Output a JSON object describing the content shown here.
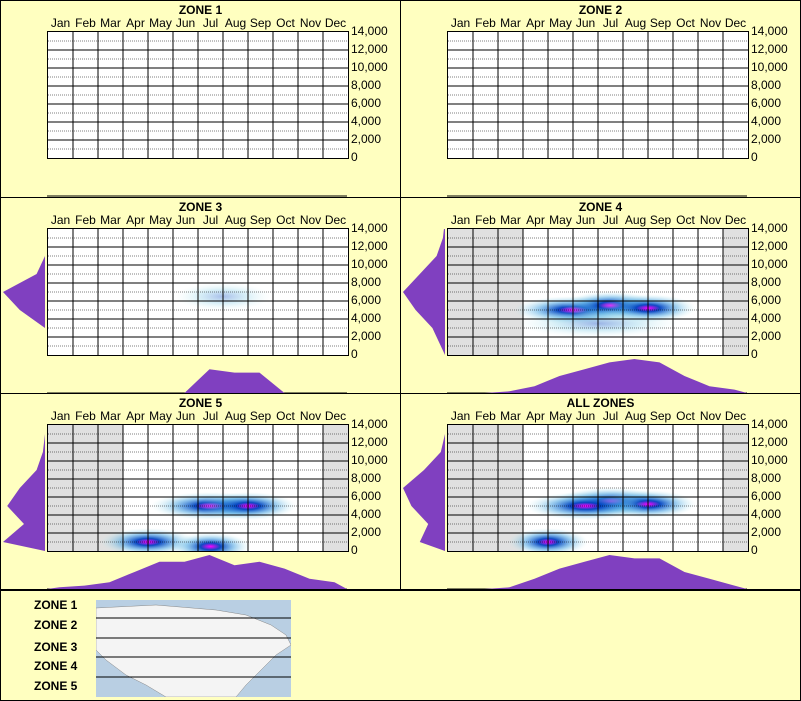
{
  "months": [
    "Jan",
    "Feb",
    "Mar",
    "Apr",
    "May",
    "Jun",
    "Jul",
    "Aug",
    "Sep",
    "Oct",
    "Nov",
    "Dec"
  ],
  "y_ticks": [
    "14,000",
    "12,000",
    "10,000",
    "8,000",
    "6,000",
    "4,000",
    "2,000",
    "0"
  ],
  "legend_labels": [
    "ZONE 1",
    "ZONE 2",
    "ZONE 3",
    "ZONE 4",
    "ZONE 5"
  ],
  "colors": {
    "background": "#ffffc0",
    "density": "#8040c0",
    "heat_low": "#c0f0f0",
    "heat_mid": "#0040c0",
    "heat_high": "#ff00ff",
    "shade": "#e0e0e0"
  },
  "chart_data": [
    {
      "type": "heatmap",
      "title": "ZONE 1",
      "ylim": [
        0,
        14000
      ],
      "x": [
        "Jan",
        "Feb",
        "Mar",
        "Apr",
        "May",
        "Jun",
        "Jul",
        "Aug",
        "Sep",
        "Oct",
        "Nov",
        "Dec"
      ],
      "shaded_months": [],
      "hotspots": []
    },
    {
      "type": "heatmap",
      "title": "ZONE 2",
      "ylim": [
        0,
        14000
      ],
      "x": [
        "Jan",
        "Feb",
        "Mar",
        "Apr",
        "May",
        "Jun",
        "Jul",
        "Aug",
        "Sep",
        "Oct",
        "Nov",
        "Dec"
      ],
      "shaded_months": [],
      "hotspots": []
    },
    {
      "type": "heatmap",
      "title": "ZONE 3",
      "ylim": [
        0,
        14000
      ],
      "x": [
        "Jan",
        "Feb",
        "Mar",
        "Apr",
        "May",
        "Jun",
        "Jul",
        "Aug",
        "Sep",
        "Oct",
        "Nov",
        "Dec"
      ],
      "shaded_months": [],
      "hotspots": [
        {
          "month": 7.5,
          "elev": 6500,
          "intensity": 0.35,
          "spread": 1.2
        }
      ],
      "month_density": [
        0,
        0,
        0,
        0,
        0,
        0,
        0.7,
        0.6,
        0.6,
        0,
        0,
        0
      ],
      "elev_density": [
        0,
        0,
        0.6,
        1,
        0.2,
        0,
        0,
        0
      ]
    },
    {
      "type": "heatmap",
      "title": "ZONE 4",
      "ylim": [
        0,
        14000
      ],
      "x": [
        "Jan",
        "Feb",
        "Mar",
        "Apr",
        "May",
        "Jun",
        "Jul",
        "Aug",
        "Sep",
        "Oct",
        "Nov",
        "Dec"
      ],
      "shaded_months": [
        "Jan",
        "Feb",
        "Mar",
        "Dec"
      ],
      "hotspots": [
        {
          "month": 5.5,
          "elev": 5000,
          "intensity": 0.7,
          "spread": 1.5
        },
        {
          "month": 7.0,
          "elev": 5500,
          "intensity": 1.0,
          "spread": 1.2
        },
        {
          "month": 8.5,
          "elev": 5200,
          "intensity": 0.9,
          "spread": 1.2
        },
        {
          "month": 6.5,
          "elev": 3500,
          "intensity": 0.4,
          "spread": 2.0
        }
      ],
      "month_density": [
        0,
        0,
        0.05,
        0.2,
        0.5,
        0.7,
        0.9,
        1.0,
        0.9,
        0.5,
        0.2,
        0.1
      ],
      "elev_density": [
        0.1,
        0.3,
        0.7,
        1.0,
        0.6,
        0.2,
        0.05,
        0
      ]
    },
    {
      "type": "heatmap",
      "title": "ZONE 5",
      "ylim": [
        0,
        14000
      ],
      "x": [
        "Jan",
        "Feb",
        "Mar",
        "Apr",
        "May",
        "Jun",
        "Jul",
        "Aug",
        "Sep",
        "Oct",
        "Nov",
        "Dec"
      ],
      "shaded_months": [
        "Jan",
        "Feb",
        "Mar",
        "Dec"
      ],
      "hotspots": [
        {
          "month": 4.5,
          "elev": 1000,
          "intensity": 1.0,
          "spread": 1.2
        },
        {
          "month": 7.0,
          "elev": 5000,
          "intensity": 0.9,
          "spread": 1.5
        },
        {
          "month": 8.5,
          "elev": 5000,
          "intensity": 0.8,
          "spread": 1.2
        },
        {
          "month": 7.0,
          "elev": 500,
          "intensity": 0.8,
          "spread": 1.0
        }
      ],
      "month_density": [
        0.05,
        0.1,
        0.2,
        0.5,
        0.8,
        0.8,
        1.0,
        0.7,
        0.8,
        0.6,
        0.3,
        0.2
      ],
      "elev_density": [
        1.0,
        0.5,
        0.9,
        0.6,
        0.2,
        0.05,
        0,
        0
      ]
    },
    {
      "type": "heatmap",
      "title": "ALL ZONES",
      "ylim": [
        0,
        14000
      ],
      "x": [
        "Jan",
        "Feb",
        "Mar",
        "Apr",
        "May",
        "Jun",
        "Jul",
        "Aug",
        "Sep",
        "Oct",
        "Nov",
        "Dec"
      ],
      "shaded_months": [
        "Jan",
        "Feb",
        "Mar",
        "Dec"
      ],
      "hotspots": [
        {
          "month": 4.5,
          "elev": 1000,
          "intensity": 0.8,
          "spread": 1.0
        },
        {
          "month": 7.0,
          "elev": 5500,
          "intensity": 1.0,
          "spread": 1.4
        },
        {
          "month": 8.5,
          "elev": 5200,
          "intensity": 0.9,
          "spread": 1.2
        },
        {
          "month": 6.0,
          "elev": 5000,
          "intensity": 0.7,
          "spread": 1.5
        }
      ],
      "month_density": [
        0,
        0,
        0.05,
        0.3,
        0.6,
        0.8,
        1.0,
        0.9,
        0.9,
        0.5,
        0.3,
        0.1
      ],
      "elev_density": [
        0.6,
        0.4,
        0.8,
        1.0,
        0.5,
        0.1,
        0,
        0
      ]
    }
  ]
}
